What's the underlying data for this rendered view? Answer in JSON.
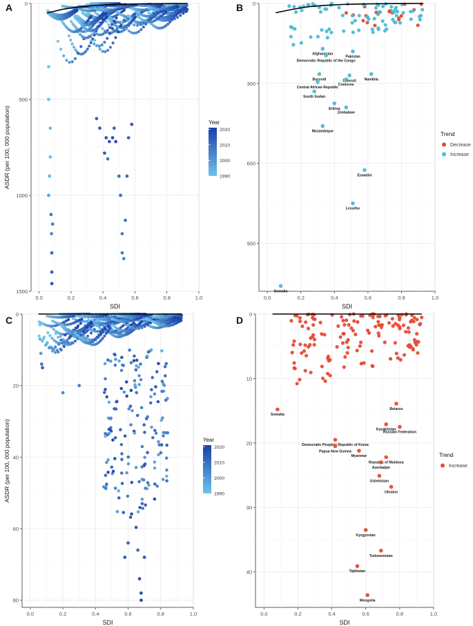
{
  "figure": {
    "panel_labels": [
      "A",
      "B",
      "C",
      "D"
    ],
    "year_legend_title": "Year",
    "trend_legend_title": "Trend"
  },
  "colors": {
    "year_low": "#6ec3e8",
    "year_high": "#1c3fa8",
    "decrease": "#e64b35",
    "increase_teal": "#4dbbd5",
    "increase_red": "#e64b35",
    "frontier": "#000000",
    "grid": "#ebebeb"
  },
  "chart_data": [
    {
      "id": "A",
      "type": "scatter",
      "xlabel": "SDI",
      "ylabel": "ASDR (per 100, 000 population)",
      "xlim": [
        -0.05,
        1.0
      ],
      "ylim": [
        1500,
        0
      ],
      "y_reversed": true,
      "xticks": [
        "0.0",
        "0.2",
        "0.4",
        "0.6",
        "0.8",
        "1.0"
      ],
      "yticks": [
        "0",
        "500",
        "1000",
        "1500"
      ],
      "ytick_values": [
        0,
        500,
        1000,
        1500
      ],
      "legend": {
        "title": "Year",
        "type": "colorbar",
        "ticks": [
          "2020",
          "2010",
          "2000",
          "1990"
        ],
        "tick_values": [
          2020,
          2010,
          2000,
          1990
        ],
        "range": [
          1990,
          2021
        ]
      },
      "frontier": {
        "x": [
          0.05,
          0.15,
          0.25,
          0.35,
          0.45,
          0.55,
          0.65,
          0.75,
          0.85,
          0.93
        ],
        "y": [
          50,
          30,
          18,
          10,
          6,
          4,
          2,
          1,
          0.5,
          0
        ]
      },
      "dense_region": {
        "x_range": [
          0.05,
          0.93
        ],
        "y_max": 420,
        "series_count": 60,
        "year_range": [
          1990,
          2021
        ]
      },
      "points": [
        {
          "x": 0.06,
          "y": 1000,
          "year": 2000
        },
        {
          "x": 0.065,
          "y": 900,
          "year": 1995
        },
        {
          "x": 0.07,
          "y": 800,
          "year": 1992
        },
        {
          "x": 0.075,
          "y": 1100,
          "year": 2010
        },
        {
          "x": 0.078,
          "y": 1200,
          "year": 2005
        },
        {
          "x": 0.08,
          "y": 1300,
          "year": 2012
        },
        {
          "x": 0.08,
          "y": 1400,
          "year": 2015
        },
        {
          "x": 0.08,
          "y": 1460,
          "year": 2018
        },
        {
          "x": 0.085,
          "y": 1150,
          "year": 2008
        },
        {
          "x": 0.07,
          "y": 650,
          "year": 1993
        },
        {
          "x": 0.06,
          "y": 500,
          "year": 1991
        },
        {
          "x": 0.06,
          "y": 330,
          "year": 1990
        },
        {
          "x": 0.36,
          "y": 600,
          "year": 2015
        },
        {
          "x": 0.38,
          "y": 650,
          "year": 2016
        },
        {
          "x": 0.42,
          "y": 700,
          "year": 2017
        },
        {
          "x": 0.44,
          "y": 720,
          "year": 2018
        },
        {
          "x": 0.46,
          "y": 700,
          "year": 2019
        },
        {
          "x": 0.47,
          "y": 650,
          "year": 2014
        },
        {
          "x": 0.48,
          "y": 720,
          "year": 2020
        },
        {
          "x": 0.5,
          "y": 900,
          "year": 2012
        },
        {
          "x": 0.51,
          "y": 1000,
          "year": 2011
        },
        {
          "x": 0.52,
          "y": 1200,
          "year": 2009
        },
        {
          "x": 0.52,
          "y": 1300,
          "year": 2008
        },
        {
          "x": 0.53,
          "y": 1330,
          "year": 2006
        },
        {
          "x": 0.54,
          "y": 1130,
          "year": 2010
        },
        {
          "x": 0.55,
          "y": 900,
          "year": 2013
        },
        {
          "x": 0.56,
          "y": 700,
          "year": 2015
        },
        {
          "x": 0.58,
          "y": 630,
          "year": 2017
        },
        {
          "x": 0.41,
          "y": 780,
          "year": 2016
        },
        {
          "x": 0.43,
          "y": 810,
          "year": 2010
        }
      ]
    },
    {
      "id": "B",
      "type": "scatter",
      "xlabel": "SDI",
      "ylabel": "",
      "xlim": [
        -0.05,
        1.0
      ],
      "ylim": [
        1080,
        0
      ],
      "y_reversed": true,
      "xticks": [
        "0.0",
        "0.2",
        "0.4",
        "0.6",
        "0.8",
        "1.0"
      ],
      "yticks": [
        "0",
        "300",
        "600",
        "900"
      ],
      "ytick_values": [
        0,
        300,
        600,
        900
      ],
      "legend": {
        "title": "Trend",
        "entries": [
          "Decrease",
          "Increase"
        ]
      },
      "frontier": {
        "x": [
          0.05,
          0.15,
          0.25,
          0.35,
          0.45,
          0.55,
          0.65,
          0.75,
          0.85,
          0.93
        ],
        "y": [
          35,
          22,
          12,
          7,
          4,
          2,
          1,
          0.5,
          0.2,
          0
        ]
      },
      "cluster": {
        "decrease_count": 20,
        "increase_count": 80,
        "x_range": [
          0.12,
          0.93
        ],
        "y_max": 160
      },
      "labeled_points": [
        {
          "label": "Afghanistan",
          "x": 0.33,
          "y": 170,
          "trend": "Increase"
        },
        {
          "label": "Pakistan",
          "x": 0.51,
          "y": 180,
          "trend": "Increase"
        },
        {
          "label": "Democratic Republic of the Congo",
          "x": 0.35,
          "y": 195,
          "trend": "Increase"
        },
        {
          "label": "Burundi",
          "x": 0.31,
          "y": 265,
          "trend": "Increase"
        },
        {
          "label": "Djibouti",
          "x": 0.49,
          "y": 270,
          "trend": "Increase"
        },
        {
          "label": "Namibia",
          "x": 0.62,
          "y": 265,
          "trend": "Increase"
        },
        {
          "label": "Comoros",
          "x": 0.47,
          "y": 285,
          "trend": "Increase"
        },
        {
          "label": "Central African Republic",
          "x": 0.3,
          "y": 295,
          "trend": "Increase"
        },
        {
          "label": "South Sudan",
          "x": 0.28,
          "y": 330,
          "trend": "Increase"
        },
        {
          "label": "Eritrea",
          "x": 0.4,
          "y": 375,
          "trend": "Increase"
        },
        {
          "label": "Zimbabwe",
          "x": 0.47,
          "y": 390,
          "trend": "Increase"
        },
        {
          "label": "Mozambique",
          "x": 0.33,
          "y": 460,
          "trend": "Increase"
        },
        {
          "label": "Eswatini",
          "x": 0.58,
          "y": 625,
          "trend": "Increase"
        },
        {
          "label": "Lesotho",
          "x": 0.51,
          "y": 750,
          "trend": "Increase"
        },
        {
          "label": "Somalia",
          "x": 0.08,
          "y": 1060,
          "trend": "Increase"
        }
      ]
    },
    {
      "id": "C",
      "type": "scatter",
      "xlabel": "SDI",
      "ylabel": "ASDR (per 100, 000 population)",
      "xlim": [
        -0.05,
        1.0
      ],
      "ylim": [
        82,
        0
      ],
      "y_reversed": true,
      "xticks": [
        "0.0",
        "0.2",
        "0.4",
        "0.6",
        "0.8",
        "1.0"
      ],
      "yticks": [
        "0",
        "20",
        "40",
        "60",
        "80"
      ],
      "ytick_values": [
        0,
        20,
        40,
        60,
        80
      ],
      "legend": {
        "title": "Year",
        "type": "colorbar",
        "ticks": [
          "2020",
          "2010",
          "2000",
          "1990"
        ],
        "tick_values": [
          2020,
          2010,
          2000,
          1990
        ],
        "range": [
          1990,
          2021
        ]
      },
      "frontier": {
        "x": [
          0.05,
          0.93
        ],
        "y": [
          0,
          0
        ]
      },
      "dense_region": {
        "x_range": [
          0.05,
          0.93
        ],
        "y_max": 14,
        "series_count": 60,
        "year_range": [
          1990,
          2021
        ]
      },
      "spread_region": {
        "x_range": [
          0.45,
          0.85
        ],
        "y_range": [
          10,
          62
        ],
        "count": 170
      },
      "points": [
        {
          "x": 0.06,
          "y": 3,
          "year": 1990
        },
        {
          "x": 0.06,
          "y": 7,
          "year": 1995
        },
        {
          "x": 0.065,
          "y": 11,
          "year": 2000
        },
        {
          "x": 0.07,
          "y": 14,
          "year": 2010
        },
        {
          "x": 0.075,
          "y": 15,
          "year": 2015
        },
        {
          "x": 0.2,
          "y": 22,
          "year": 2005
        },
        {
          "x": 0.3,
          "y": 20,
          "year": 2008
        },
        {
          "x": 0.6,
          "y": 64,
          "year": 2014
        },
        {
          "x": 0.58,
          "y": 68,
          "year": 2016
        },
        {
          "x": 0.66,
          "y": 66,
          "year": 2012
        },
        {
          "x": 0.67,
          "y": 74,
          "year": 2018
        },
        {
          "x": 0.68,
          "y": 78,
          "year": 2019
        },
        {
          "x": 0.68,
          "y": 80,
          "year": 2020
        },
        {
          "x": 0.7,
          "y": 68,
          "year": 2017
        }
      ]
    },
    {
      "id": "D",
      "type": "scatter",
      "xlabel": "SDI",
      "ylabel": "",
      "xlim": [
        -0.05,
        1.0
      ],
      "ylim": [
        45.5,
        0
      ],
      "y_reversed": true,
      "xticks": [
        "0.0",
        "0.2",
        "0.4",
        "0.6",
        "0.8",
        "1.0"
      ],
      "yticks": [
        "0",
        "10",
        "20",
        "30",
        "40"
      ],
      "ytick_values": [
        0,
        10,
        20,
        30,
        40
      ],
      "legend": {
        "title": "Trend",
        "entries": [
          "Increase"
        ]
      },
      "frontier": {
        "x": [
          0.05,
          0.93
        ],
        "y": [
          0,
          0
        ]
      },
      "cluster": {
        "increase_count": 150,
        "x_range": [
          0.15,
          0.93
        ],
        "y_max": 12
      },
      "labeled_points": [
        {
          "label": "Somalia",
          "x": 0.08,
          "y": 14.8,
          "trend": "Increase"
        },
        {
          "label": "Belarus",
          "x": 0.78,
          "y": 13.9,
          "trend": "Increase"
        },
        {
          "label": "Kazakhstan",
          "x": 0.72,
          "y": 17.1,
          "trend": "Increase"
        },
        {
          "label": "Russian Federation",
          "x": 0.8,
          "y": 17.5,
          "trend": "Increase"
        },
        {
          "label": "Democratic People's Republic of Korea",
          "x": 0.42,
          "y": 19.5,
          "trend": "Increase"
        },
        {
          "label": "Papua New Guinea",
          "x": 0.42,
          "y": 20.5,
          "trend": "Increase"
        },
        {
          "label": "Myanmar",
          "x": 0.56,
          "y": 21.2,
          "trend": "Increase"
        },
        {
          "label": "Republic of Moldova",
          "x": 0.72,
          "y": 22.2,
          "trend": "Increase"
        },
        {
          "label": "Azerbaijan",
          "x": 0.69,
          "y": 23.0,
          "trend": "Increase"
        },
        {
          "label": "Uzbekistan",
          "x": 0.68,
          "y": 25.1,
          "trend": "Increase"
        },
        {
          "label": "Ukraine",
          "x": 0.75,
          "y": 26.8,
          "trend": "Increase"
        },
        {
          "label": "Kyrgyzstan",
          "x": 0.6,
          "y": 33.5,
          "trend": "Increase"
        },
        {
          "label": "Turkmenistan",
          "x": 0.69,
          "y": 36.7,
          "trend": "Increase"
        },
        {
          "label": "Tajikistan",
          "x": 0.55,
          "y": 39.1,
          "trend": "Increase"
        },
        {
          "label": "Mongolia",
          "x": 0.61,
          "y": 43.6,
          "trend": "Increase"
        }
      ]
    }
  ]
}
